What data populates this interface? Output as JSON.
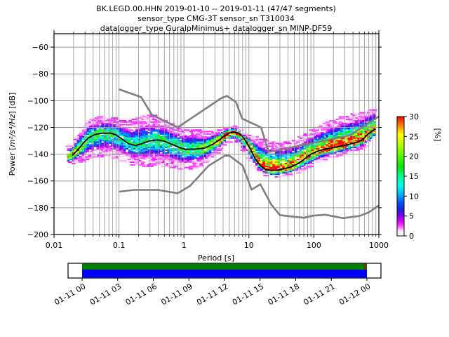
{
  "title": {
    "line1": "BK.LEGD.00.HHN   2019-01-10 -- 2019-01-11  (47/47 segments)",
    "line2": "sensor_type CMG-3T sensor_sn T310034",
    "line3": "datalogger_type GuralpMinimus+ datalogger_sn MINP-DF59"
  },
  "axes": {
    "xlabel": "Period [s]",
    "ylabel_prefix": "Power [",
    "ylabel_math": "m²/s⁴/Hz",
    "ylabel_suffix": "] [dB]",
    "x_tick_values": [
      0.01,
      0.1,
      1,
      10,
      100,
      1000
    ],
    "x_tick_labels": [
      "0.01",
      "0.1",
      "1",
      "10",
      "100",
      "1000"
    ],
    "y_tick_values": [
      -60,
      -80,
      -100,
      -120,
      -140,
      -160,
      -180,
      -200
    ],
    "y_tick_labels": [
      "−60",
      "−80",
      "−100",
      "−120",
      "−140",
      "−160",
      "−180",
      "−200"
    ],
    "xlim": [
      0.01,
      1000
    ],
    "ylim": [
      -200,
      -50
    ],
    "x_scale": "log",
    "grid": true
  },
  "colorbar": {
    "label": "[%]",
    "ticks": [
      0,
      5,
      10,
      15,
      20,
      25,
      30
    ],
    "max": 30,
    "colormap_stops": [
      [
        0.0,
        "#ffffff"
      ],
      [
        0.04,
        "#ffeaff"
      ],
      [
        0.08,
        "#ff50ff"
      ],
      [
        0.12,
        "#e000ff"
      ],
      [
        0.17,
        "#8000f0"
      ],
      [
        0.22,
        "#2020e8"
      ],
      [
        0.28,
        "#0055ff"
      ],
      [
        0.35,
        "#00b4ff"
      ],
      [
        0.42,
        "#00ffea"
      ],
      [
        0.5,
        "#00ff95"
      ],
      [
        0.58,
        "#0ae500"
      ],
      [
        0.68,
        "#5aff00"
      ],
      [
        0.78,
        "#c8ff00"
      ],
      [
        0.85,
        "#ffff00"
      ],
      [
        0.92,
        "#ff8c00"
      ],
      [
        1.0,
        "#ff0000"
      ]
    ]
  },
  "chart_data": {
    "type": "heatmap",
    "title": "BK.LEGD.00.HHN PPSD 2019-01-10 -- 2019-01-11",
    "xlabel": "Period [s]",
    "ylabel": "Power [m²/s⁴/Hz] [dB]",
    "xlim": [
      0.01,
      1000
    ],
    "ylim": [
      -200,
      -50
    ],
    "histogram": {
      "period_step_octaves": 0.125,
      "db_bin_width": 1,
      "periods": [
        0.0166,
        0.019,
        0.026,
        0.034,
        0.05,
        0.07,
        0.09,
        0.13,
        0.17,
        0.25,
        0.4,
        0.6,
        1.0,
        1.5,
        2.2,
        3.3,
        4.5,
        5.8,
        7.0,
        8.8,
        11.5,
        15,
        19,
        25,
        32,
        45,
        65,
        100,
        160,
        250,
        400,
        600,
        750,
        890
      ],
      "mode_db": [
        -141.5,
        -141,
        -134.5,
        -127.8,
        -124.6,
        -124.3,
        -125.8,
        -130.5,
        -133.4,
        -131.5,
        -129.4,
        -131.8,
        -136.4,
        -136.1,
        -135.4,
        -129.8,
        -125.5,
        -123.5,
        -124.4,
        -129.7,
        -138.5,
        -148,
        -151.3,
        -152.2,
        -151.2,
        -149.8,
        -145,
        -139.8,
        -136,
        -134.2,
        -131.8,
        -128.8,
        -124.5,
        -121.4
      ],
      "top_db": [
        -134,
        -133,
        -122,
        -114.5,
        -112.5,
        -112.5,
        -113.5,
        -116,
        -114,
        -111,
        -111.5,
        -117,
        -121,
        -122,
        -124,
        -122.5,
        -120,
        -119,
        -121,
        -124,
        -126.5,
        -128.5,
        -130,
        -131,
        -131.5,
        -130,
        -127,
        -121,
        -116.5,
        -112.5,
        -110,
        -108,
        -106,
        -105.5
      ],
      "bottom_db": [
        -147.5,
        -147.5,
        -146,
        -143,
        -142,
        -141,
        -143,
        -146.5,
        -148,
        -149,
        -147.5,
        -150,
        -151.5,
        -150.5,
        -146.5,
        -138.5,
        -131.5,
        -129.5,
        -132.5,
        -139,
        -148,
        -153.5,
        -156,
        -157.5,
        -157,
        -155.5,
        -152.5,
        -147.5,
        -143.5,
        -140.5,
        -138,
        -135.5,
        -131,
        -127.5
      ],
      "peak_percent": [
        24,
        26,
        18,
        16,
        15,
        15,
        14,
        13,
        13,
        13,
        14,
        14,
        15,
        16,
        19,
        27,
        30,
        30,
        28,
        25,
        24,
        26,
        28,
        30,
        28,
        27,
        26,
        26,
        28,
        30,
        30,
        28,
        26,
        24
      ]
    },
    "mode_line": {
      "periods": [
        0.019,
        0.023,
        0.028,
        0.034,
        0.042,
        0.055,
        0.075,
        0.09,
        0.11,
        0.14,
        0.18,
        0.23,
        0.3,
        0.4,
        0.5,
        0.65,
        0.85,
        1.05,
        1.5,
        2.1,
        2.8,
        3.5,
        4.3,
        5.0,
        5.8,
        6.6,
        7.5,
        8.8,
        10.5,
        12.5,
        15,
        18,
        22,
        27,
        33,
        42,
        55,
        70,
        90,
        120,
        170,
        250,
        350,
        480,
        580,
        650,
        700,
        800,
        890
      ],
      "db": [
        -141,
        -137,
        -132,
        -127.8,
        -125.4,
        -124.3,
        -124.3,
        -125.5,
        -128.5,
        -132.2,
        -133.5,
        -132,
        -130,
        -129.4,
        -130.3,
        -132.6,
        -135,
        -136.4,
        -136.2,
        -135.4,
        -132.5,
        -129.3,
        -126,
        -124.2,
        -123.5,
        -123.8,
        -125.3,
        -129.7,
        -136,
        -143.5,
        -148.5,
        -151.3,
        -152.2,
        -152,
        -151,
        -149.9,
        -147.5,
        -144,
        -140,
        -137.3,
        -135.6,
        -134.2,
        -132.6,
        -130.8,
        -128.5,
        -126,
        -124.3,
        -122.5,
        -121.3
      ]
    },
    "noise_models": {
      "nhnm": [
        [
          0.1,
          -91.5
        ],
        [
          0.22,
          -97.4
        ],
        [
          0.32,
          -110.5
        ],
        [
          0.8,
          -120
        ],
        [
          3.8,
          -98
        ],
        [
          4.6,
          -96.5
        ],
        [
          6.3,
          -101
        ],
        [
          7.9,
          -113.5
        ],
        [
          15.4,
          -120
        ],
        [
          20,
          -138.5
        ],
        [
          354.8,
          -126
        ],
        [
          1000,
          -111.8
        ]
      ],
      "nlnm": [
        [
          0.1,
          -168
        ],
        [
          0.17,
          -166.7
        ],
        [
          0.4,
          -166.7
        ],
        [
          0.8,
          -169.2
        ],
        [
          1.24,
          -163.7
        ],
        [
          2.4,
          -148.6
        ],
        [
          4.3,
          -141.1
        ],
        [
          5.0,
          -141.1
        ],
        [
          6.0,
          -144
        ],
        [
          8.0,
          -148.5
        ],
        [
          11,
          -166.5
        ],
        [
          15,
          -162.5
        ],
        [
          22,
          -177.5
        ],
        [
          30,
          -185.5
        ],
        [
          70,
          -187.5
        ],
        [
          95,
          -186
        ],
        [
          150,
          -185.2
        ],
        [
          280,
          -187.8
        ],
        [
          500,
          -186.2
        ],
        [
          700,
          -183.5
        ],
        [
          1000,
          -178.3
        ]
      ]
    }
  },
  "timeline": {
    "tick_labels": [
      "01-11 00",
      "01-11 03",
      "01-11 06",
      "01-11 09",
      "01-11 12",
      "01-11 15",
      "01-11 18",
      "01-11 21",
      "01-12 00"
    ],
    "colors": {
      "coverage_top": "#008000",
      "coverage_bottom": "#0000ff",
      "marker": "#cc0000"
    }
  },
  "style": {
    "grid_color": "#9e9e9e",
    "noise_model_color": "#7f7f7f",
    "mode_line_color": "#000000",
    "frame_color": "#000000"
  }
}
